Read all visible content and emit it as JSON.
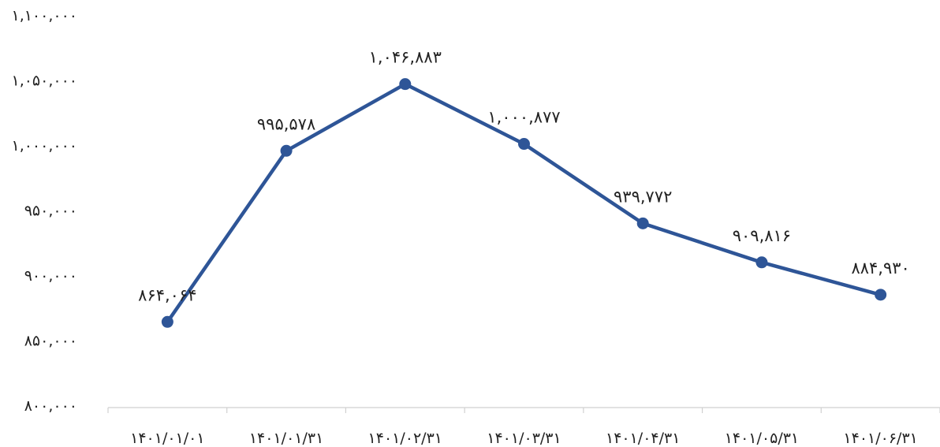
{
  "chart_data": {
    "type": "line",
    "title": "",
    "xlabel": "",
    "ylabel": "",
    "categories": [
      "۱۴۰۱/۰۱/۰۱",
      "۱۴۰۱/۰۱/۳۱",
      "۱۴۰۱/۰۲/۳۱",
      "۱۴۰۱/۰۳/۳۱",
      "۱۴۰۱/۰۴/۳۱",
      "۱۴۰۱/۰۵/۳۱",
      "۱۴۰۱/۰۶/۳۱"
    ],
    "series": [
      {
        "values": [
          864064,
          995578,
          1046883,
          1000877,
          939772,
          909816,
          884930
        ],
        "data_labels": [
          "۸۶۴,۰۶۴",
          "۹۹۵,۵۷۸",
          "۱,۰۴۶,۸۸۳",
          "۱,۰۰۰,۸۷۷",
          "۹۳۹,۷۷۲",
          "۹۰۹,۸۱۶",
          "۸۸۴,۹۳۰"
        ],
        "color": "#2e5597"
      }
    ],
    "ylim": [
      800000,
      1100000
    ],
    "yticks": [
      800000,
      850000,
      900000,
      950000,
      1000000,
      1050000,
      1100000
    ],
    "ytick_labels": [
      "۸۰۰,۰۰۰",
      "۸۵۰,۰۰۰",
      "۹۰۰,۰۰۰",
      "۹۵۰,۰۰۰",
      "۱,۰۰۰,۰۰۰",
      "۱,۰۵۰,۰۰۰",
      "۱,۱۰۰,۰۰۰"
    ],
    "grid": false,
    "legend": "none"
  }
}
